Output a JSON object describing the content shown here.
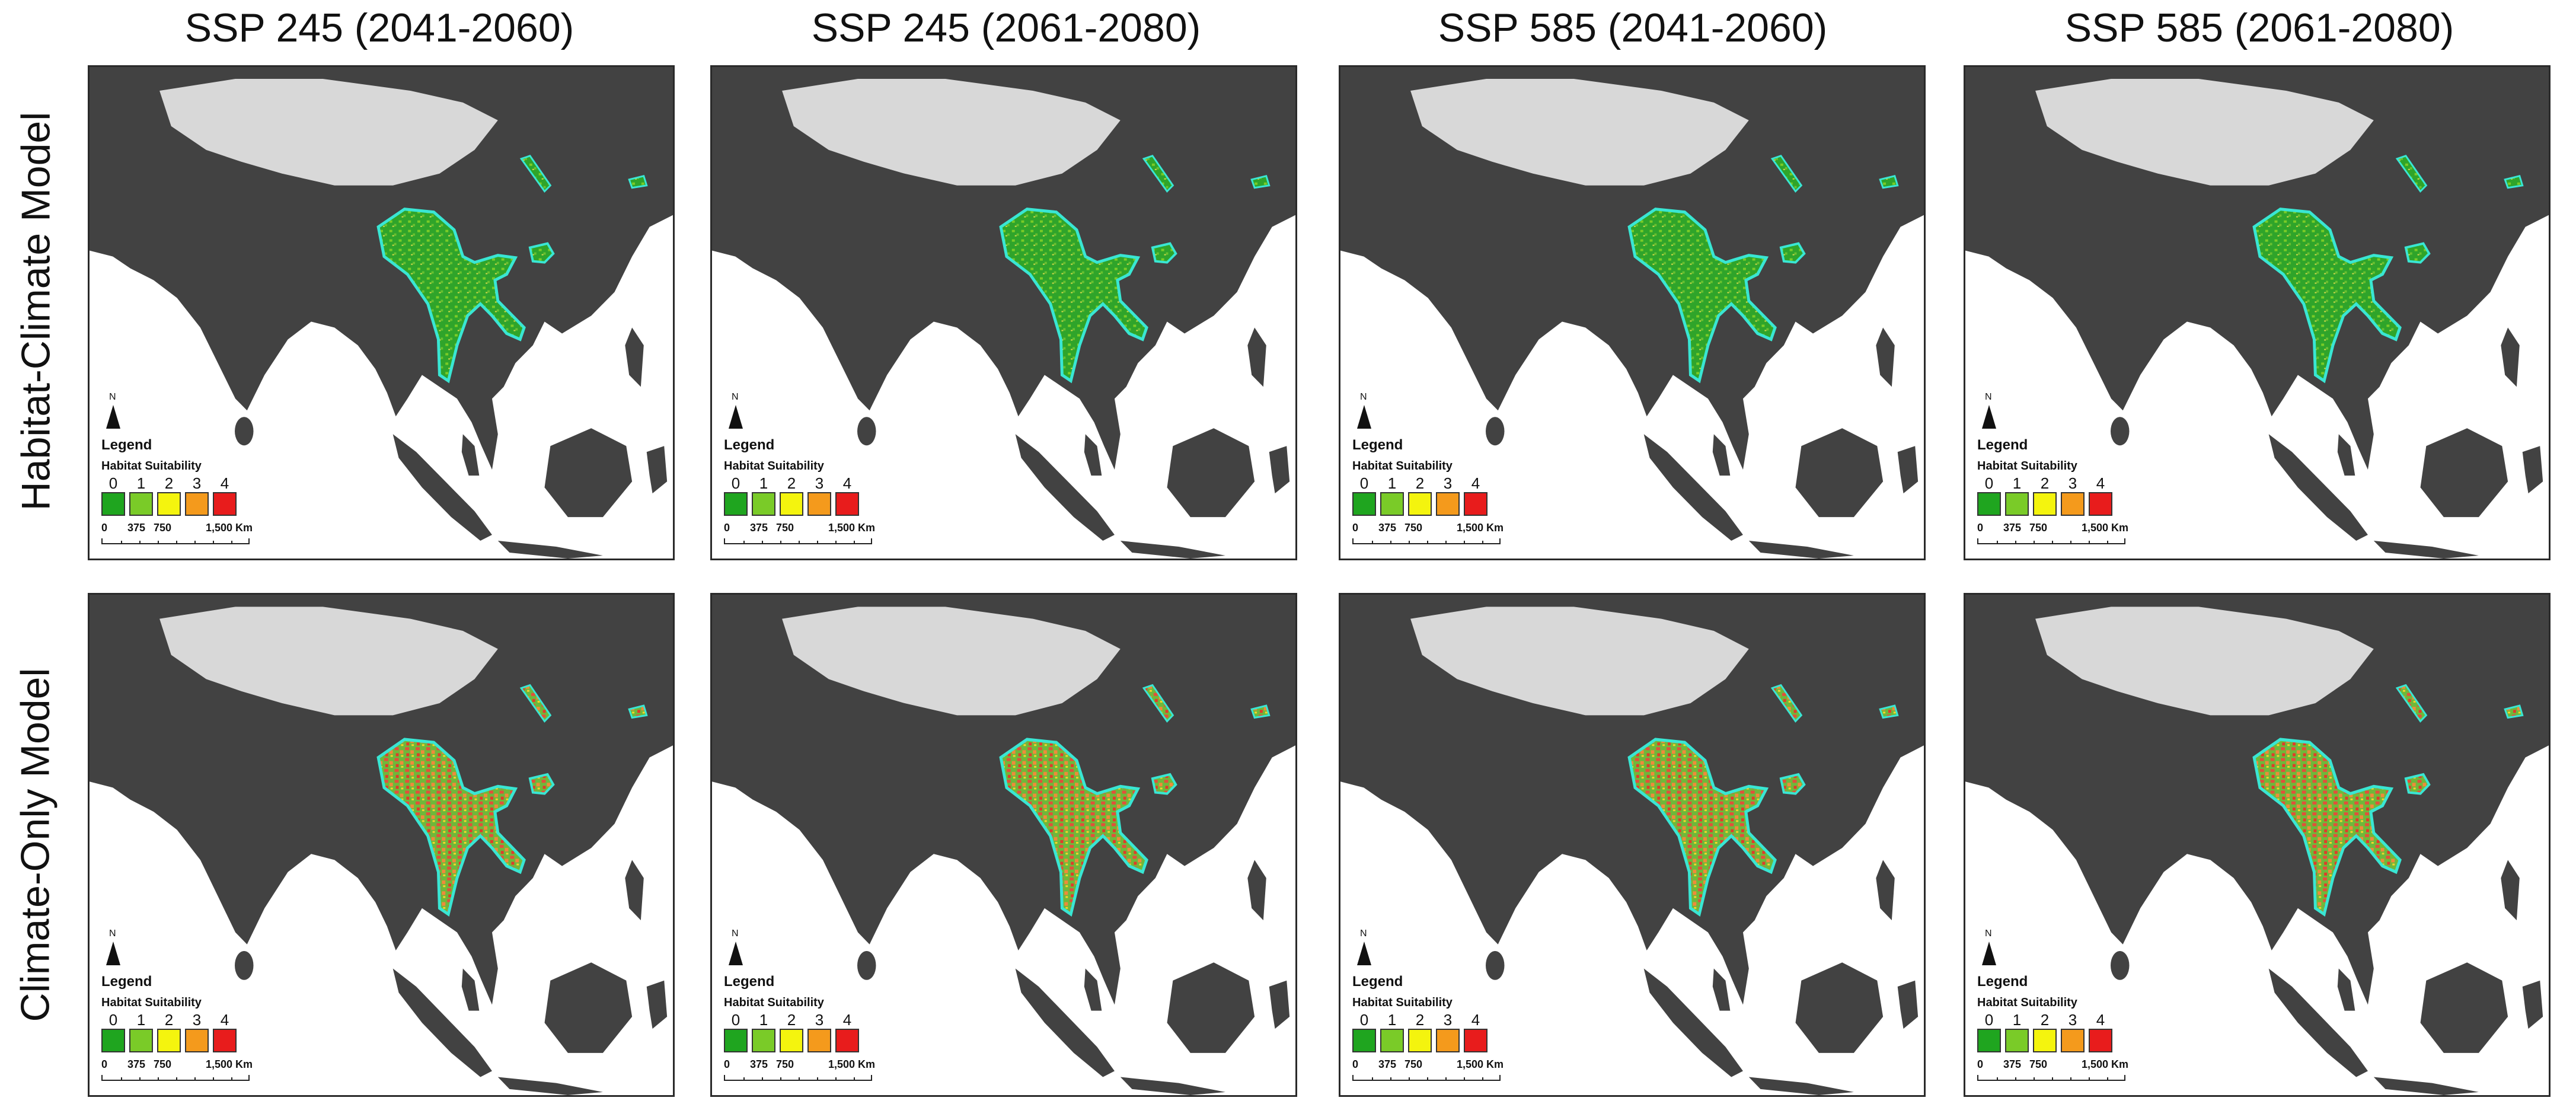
{
  "columns": [
    {
      "title": "SSP 245 (2041-2060)"
    },
    {
      "title": "SSP 245 (2061-2080)"
    },
    {
      "title": "SSP 585 (2041-2060)"
    },
    {
      "title": "SSP 585 (2061-2080)"
    }
  ],
  "rows": [
    {
      "label": "Habitat-Climate Model",
      "range_style": "green"
    },
    {
      "label": "Climate-Only Model",
      "range_style": "mixed"
    }
  ],
  "legend": {
    "north_label": "N",
    "title": "Legend",
    "subtitle": "Habitat Suitability",
    "classes": [
      {
        "label": "0",
        "color": "#1fa51f"
      },
      {
        "label": "1",
        "color": "#7acb28"
      },
      {
        "label": "2",
        "color": "#f4f40e"
      },
      {
        "label": "3",
        "color": "#f49a1c"
      },
      {
        "label": "4",
        "color": "#e81c1c"
      }
    ],
    "scale_labels": [
      "0",
      "375",
      "750",
      "1,500 Km"
    ]
  },
  "colors": {
    "land": "#424242",
    "plateau": "#d8d8d8",
    "sea": "#ffffff",
    "range_outline": "#39e6d3",
    "frame": "#2a2a2a"
  }
}
